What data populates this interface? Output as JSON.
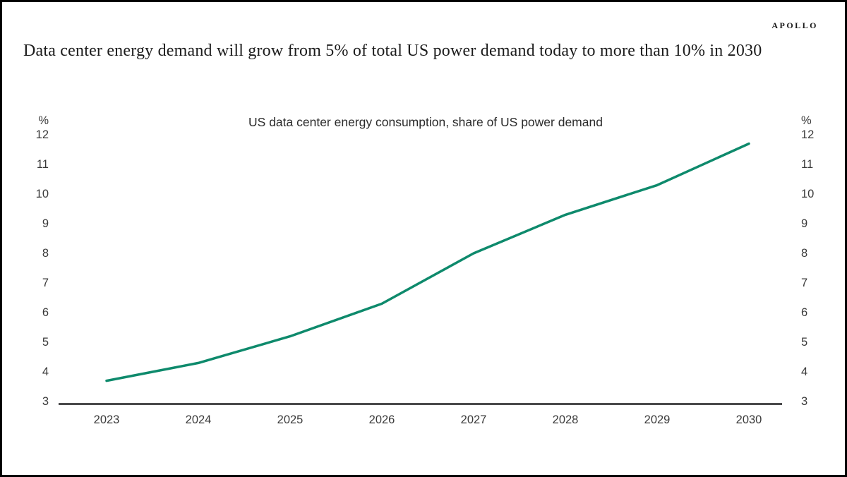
{
  "header": {
    "brand": "APOLLO",
    "title": "Data center energy demand will grow from 5% of total US power demand today to more than 10% in 2030"
  },
  "chart_data": {
    "type": "line",
    "title": "US data center energy consumption, share of US power demand",
    "x": [
      "2023",
      "2024",
      "2025",
      "2026",
      "2027",
      "2028",
      "2029",
      "2030"
    ],
    "series": [
      {
        "name": "US data center energy consumption, share of US power demand",
        "values": [
          3.7,
          4.3,
          5.2,
          6.3,
          8.0,
          9.3,
          10.3,
          11.7
        ]
      }
    ],
    "y_unit": "%",
    "y_ticks": [
      12,
      11,
      10,
      9,
      8,
      7,
      6,
      5,
      4,
      3
    ],
    "ylim": [
      3,
      12
    ],
    "xlabel": "",
    "ylabel": "%",
    "grid": false,
    "legend": "none",
    "line_color": "#0e8a6c",
    "axis_color": "#4a4a4c"
  }
}
